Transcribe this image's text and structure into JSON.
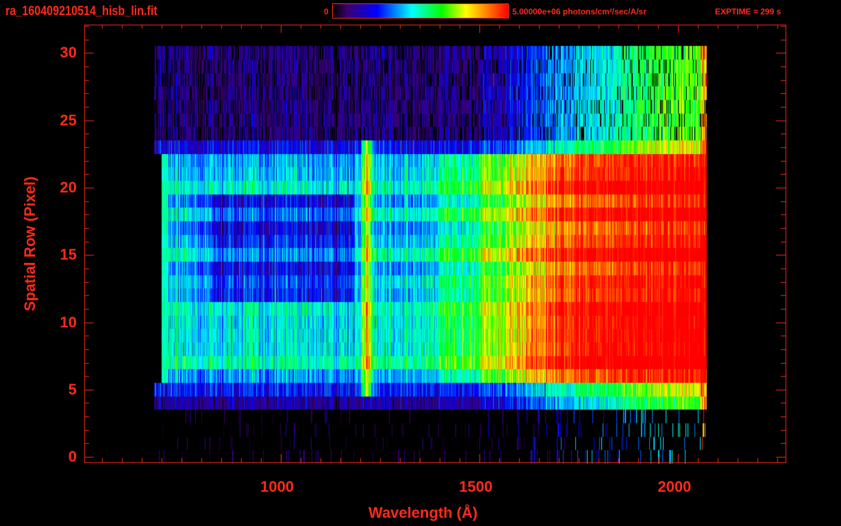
{
  "header": {
    "title": "ra_160409210514_hisb_lin.fit",
    "colorbar_min_label": "0",
    "colorbar_max_label": "5.00000e+06 photons/cm²/sec/A/sr",
    "exptime_label": "EXPTIME = 299 s"
  },
  "colors": {
    "axis": "#ff2a1a",
    "background": "#000000"
  },
  "chart_data": {
    "type": "heatmap",
    "title": "ra_160409210514_hisb_lin.fit",
    "xlabel": "Wavelength (Å)",
    "ylabel": "Spatial Row (Pixel)",
    "xlim": [
      505,
      2270
    ],
    "ylim": [
      -0.4,
      32.1
    ],
    "xticks": [
      "1000",
      "1500",
      "2000"
    ],
    "yticks": [
      "0",
      "5",
      "10",
      "15",
      "20",
      "25",
      "30"
    ],
    "x_tick_values": [
      1000,
      1500,
      2000
    ],
    "y_tick_values": [
      0,
      5,
      10,
      15,
      20,
      25,
      30
    ],
    "colorbar": {
      "min": 0,
      "max": 5000000,
      "units": "photons/cm2/sec/A/sr",
      "colormap": "rainbow"
    },
    "data_extent": {
      "wavelength": [
        700,
        2070
      ],
      "rows": [
        0,
        30
      ]
    },
    "bright_rows": [
      6,
      22
    ],
    "emission_line_wavelength": 1216,
    "grid": false
  }
}
